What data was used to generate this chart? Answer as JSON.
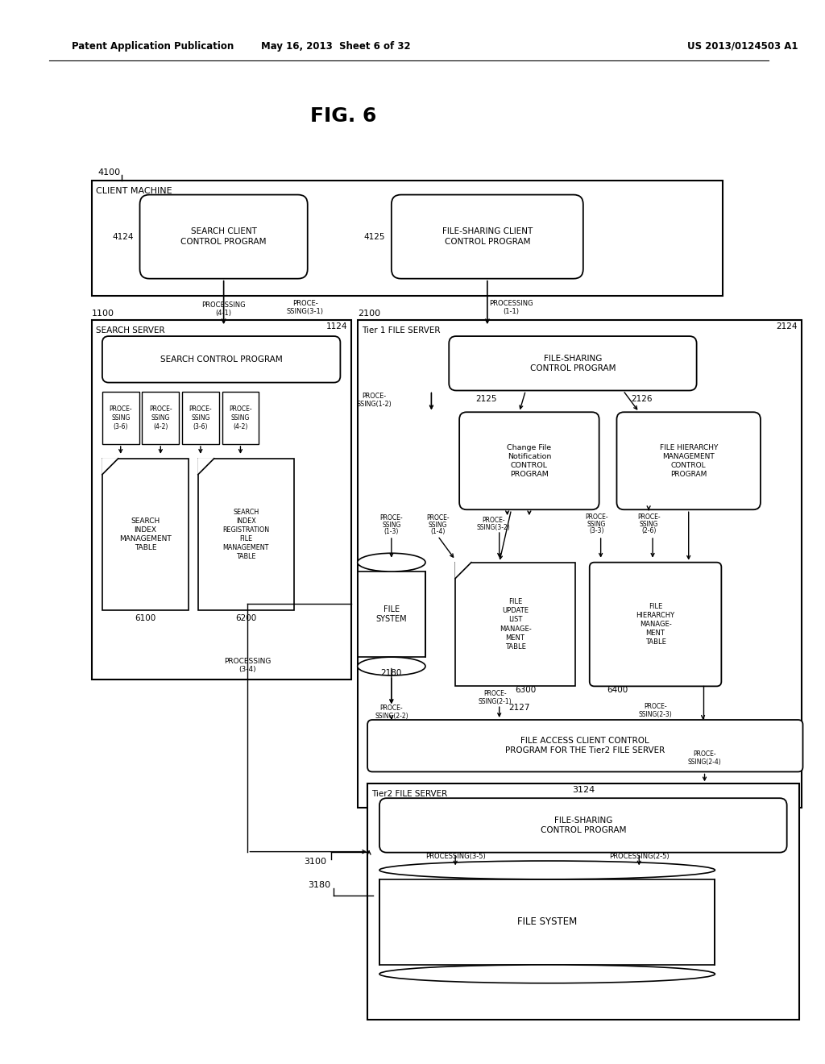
{
  "bg_color": "#ffffff",
  "header_left": "Patent Application Publication",
  "header_center": "May 16, 2013  Sheet 6 of 32",
  "header_right": "US 2013/0124503 A1",
  "fig_title": "FIG. 6"
}
